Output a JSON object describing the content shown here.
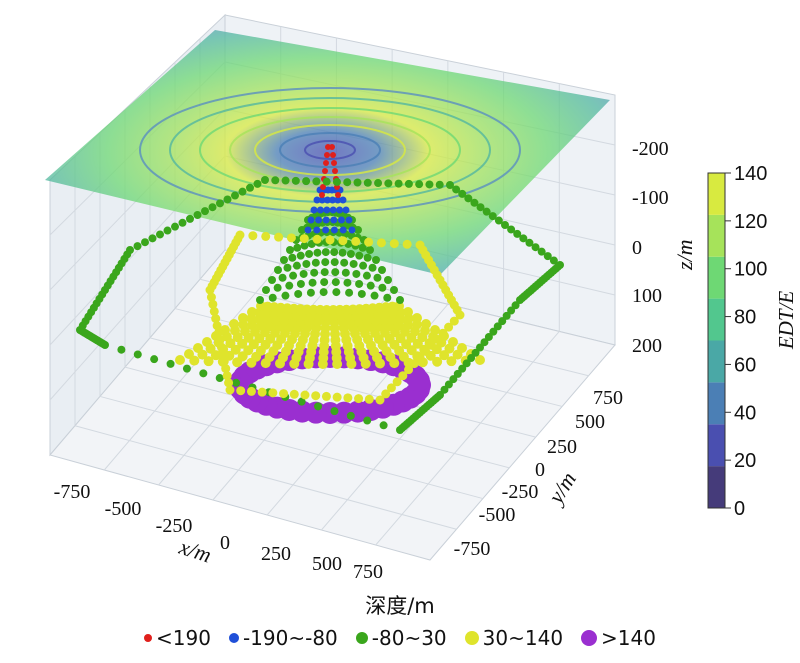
{
  "chart_data": {
    "type": "scatter3d",
    "axes": {
      "x": {
        "label": "x/m",
        "ticks": [
          "-750",
          "-500",
          "-250",
          "0",
          "250",
          "500",
          "750"
        ]
      },
      "y": {
        "label": "y/m",
        "ticks": [
          "750",
          "500",
          "250",
          "0",
          "-250",
          "-500",
          "-750"
        ]
      },
      "z": {
        "label": "z/m",
        "ticks": [
          "-200",
          "-100",
          "0",
          "100",
          "200"
        ]
      }
    },
    "colorbar": {
      "label": "EDT/E",
      "ticks": [
        "140",
        "120",
        "100",
        "80",
        "60",
        "40",
        "20",
        "0"
      ],
      "range": [
        0,
        140
      ],
      "bands": [
        "#453b7a",
        "#4a4fb0",
        "#4b7fb5",
        "#4aa8a6",
        "#52c78e",
        "#6ed874",
        "#a6e35a",
        "#d8ea40"
      ]
    },
    "surface": {
      "description_levels": [
        0,
        20,
        40,
        60,
        80,
        100,
        120,
        140
      ]
    },
    "depth_legend": {
      "title": "深度/m",
      "items": [
        {
          "label": "<190",
          "color": "#e0201c",
          "size": 8
        },
        {
          "label": "-190~-80",
          "color": "#1f4fd8",
          "size": 10
        },
        {
          "label": "-80~30",
          "color": "#3aa61c",
          "size": 12
        },
        {
          "label": "30~140",
          "color": "#dfe42c",
          "size": 14
        },
        {
          "label": ">140",
          "color": "#9a2fd0",
          "size": 16
        }
      ]
    }
  }
}
